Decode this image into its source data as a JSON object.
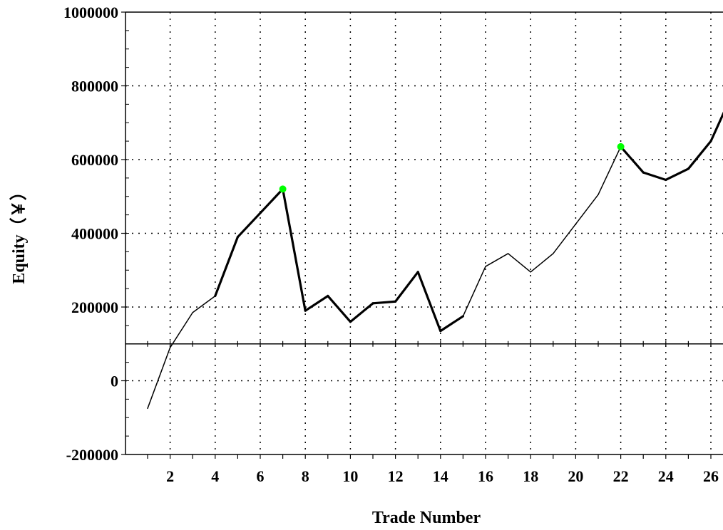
{
  "chart_data": {
    "type": "line",
    "xlabel": "Trade Number",
    "ylabel": "Equity（￥）",
    "xlim": [
      0,
      27
    ],
    "ylim": [
      -200000,
      1000000
    ],
    "baseline": 100000,
    "grid": true,
    "x_ticks": [
      2,
      4,
      6,
      8,
      10,
      12,
      14,
      16,
      18,
      20,
      22,
      24,
      26
    ],
    "x_tick_labels": [
      "2",
      "4",
      "6",
      "8",
      "10",
      "12",
      "14",
      "16",
      "18",
      "20",
      "22",
      "24",
      "26"
    ],
    "y_ticks": [
      -200000,
      0,
      200000,
      400000,
      600000,
      800000,
      1000000
    ],
    "y_tick_labels": [
      "-200000",
      "0",
      "200000",
      "400000",
      "600000",
      "800000",
      "1000000"
    ],
    "series": [
      {
        "x": [
          1,
          2,
          3,
          4,
          5,
          6,
          7,
          8,
          9,
          10,
          11,
          12,
          13,
          14,
          15,
          16,
          17,
          18,
          19,
          20,
          21,
          22,
          23,
          24,
          25,
          26,
          27
        ],
        "y": [
          -75000,
          90000,
          185000,
          230000,
          390000,
          455000,
          520000,
          190000,
          230000,
          160000,
          210000,
          215000,
          295000,
          135000,
          175000,
          310000,
          345000,
          295000,
          345000,
          425000,
          505000,
          635000,
          565000,
          545000,
          575000,
          650000,
          785000
        ],
        "bold_segments_from_x": [
          4,
          5,
          6,
          7,
          8,
          9,
          10,
          11,
          12,
          13,
          14,
          22,
          23,
          24,
          25,
          26
        ],
        "marker_color": "#000000"
      }
    ],
    "highlight_points": [
      {
        "x": 7,
        "y": 520000,
        "color": "#00ff00"
      },
      {
        "x": 22,
        "y": 635000,
        "color": "#00ff00"
      }
    ]
  }
}
